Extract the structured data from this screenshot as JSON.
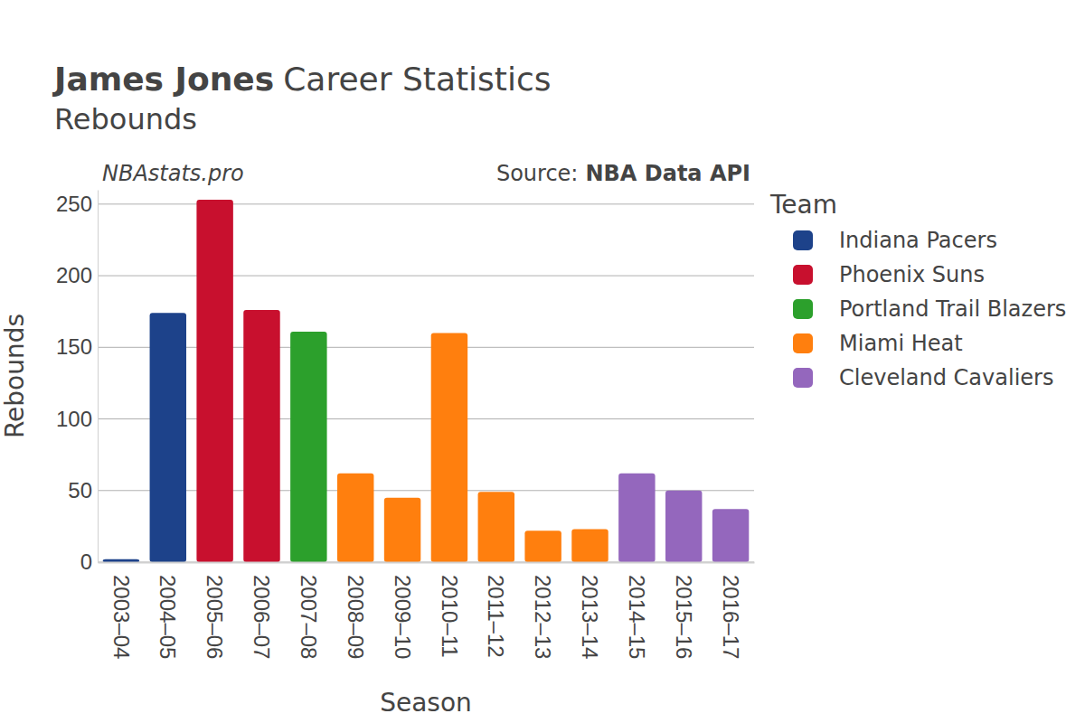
{
  "chart_data": {
    "type": "bar",
    "title": [
      "James Jones",
      "Career Statistics"
    ],
    "subtitle": "Rebounds",
    "annotations": [
      "NBAstats.pro"
    ],
    "source": [
      "Source:",
      "NBA Data API"
    ],
    "x_label": "Season",
    "y_label": "Rebounds",
    "legend_title": "Team",
    "categories": [
      "2003–04",
      "2004–05",
      "2005–06",
      "2006–07",
      "2007–08",
      "2008–09",
      "2009–10",
      "2010–11",
      "2011–12",
      "2012–13",
      "2013–14",
      "2014–15",
      "2015–16",
      "2016–17"
    ],
    "series": [
      {
        "name": "Indiana Pacers",
        "color": "#1d428a",
        "values": [
          2,
          174,
          null,
          null,
          null,
          null,
          null,
          null,
          null,
          null,
          null,
          null,
          null,
          null
        ]
      },
      {
        "name": "Phoenix Suns",
        "color": "#c8102e",
        "values": [
          null,
          null,
          253,
          176,
          null,
          null,
          null,
          null,
          null,
          null,
          null,
          null,
          null,
          null
        ]
      },
      {
        "name": "Portland Trail Blazers",
        "color": "#2ca02c",
        "values": [
          null,
          null,
          null,
          null,
          161,
          null,
          null,
          null,
          null,
          null,
          null,
          null,
          null,
          null
        ]
      },
      {
        "name": "Miami Heat",
        "color": "#ff7f0e",
        "values": [
          null,
          null,
          null,
          null,
          null,
          62,
          45,
          160,
          49,
          22,
          23,
          null,
          null,
          null
        ]
      },
      {
        "name": "Cleveland Cavaliers",
        "color": "#9467bd",
        "values": [
          null,
          null,
          null,
          null,
          null,
          null,
          null,
          null,
          null,
          null,
          null,
          62,
          50,
          37
        ]
      }
    ],
    "ylim": [
      0,
      260
    ],
    "yticks": [
      0,
      50,
      100,
      150,
      200,
      250
    ],
    "grid": true,
    "stacked": true,
    "legend": "right"
  }
}
